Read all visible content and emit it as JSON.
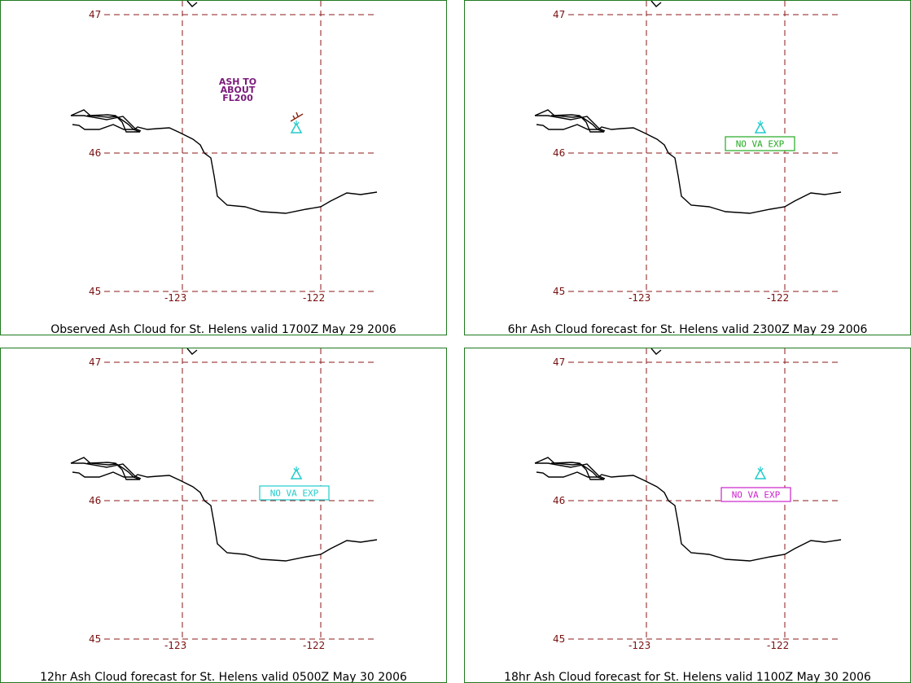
{
  "panels": [
    {
      "caption": "Observed Ash Cloud for St.  Helens valid 1700Z May 29 2006",
      "lat_labels": [
        "47",
        "46",
        "45"
      ],
      "lon_labels": [
        "-123",
        "-122"
      ],
      "annotation": {
        "lines": [
          "ASH  TO",
          "ABOUT",
          "FL200"
        ],
        "color": "#7a1a7a"
      },
      "wind_barb": true,
      "status_box": null
    },
    {
      "caption": "6hr Ash Cloud forecast for St.  Helens valid 2300Z May 29 2006",
      "lat_labels": [
        "47",
        "46",
        "45"
      ],
      "lon_labels": [
        "-123",
        "-122"
      ],
      "annotation": null,
      "wind_barb": false,
      "status_box": {
        "text": "NO  VA  EXP",
        "color": "#22aa22"
      }
    },
    {
      "caption": "12hr Ash Cloud forecast for St.  Helens valid 0500Z May 30 2006",
      "lat_labels": [
        "47",
        "46",
        "45"
      ],
      "lon_labels": [
        "-123",
        "-122"
      ],
      "annotation": null,
      "wind_barb": false,
      "status_box": {
        "text": "NO  VA  EXP",
        "color": "#22cccc"
      }
    },
    {
      "caption": "18hr Ash Cloud forecast for St.  Helens valid 1100Z May 30 2006",
      "lat_labels": [
        "47",
        "46",
        "45"
      ],
      "lon_labels": [
        "-123",
        "-122"
      ],
      "annotation": null,
      "wind_barb": false,
      "status_box": {
        "text": "NO  VA  EXP",
        "color": "#cc22cc"
      }
    }
  ],
  "colors": {
    "grid": "#8b1a1a",
    "label": "#7a1010",
    "border": "#1f7a1f",
    "coastline": "#000000",
    "volcano": "#22cccc"
  },
  "icons": [
    "volcano-icon",
    "wind-barb-icon"
  ]
}
